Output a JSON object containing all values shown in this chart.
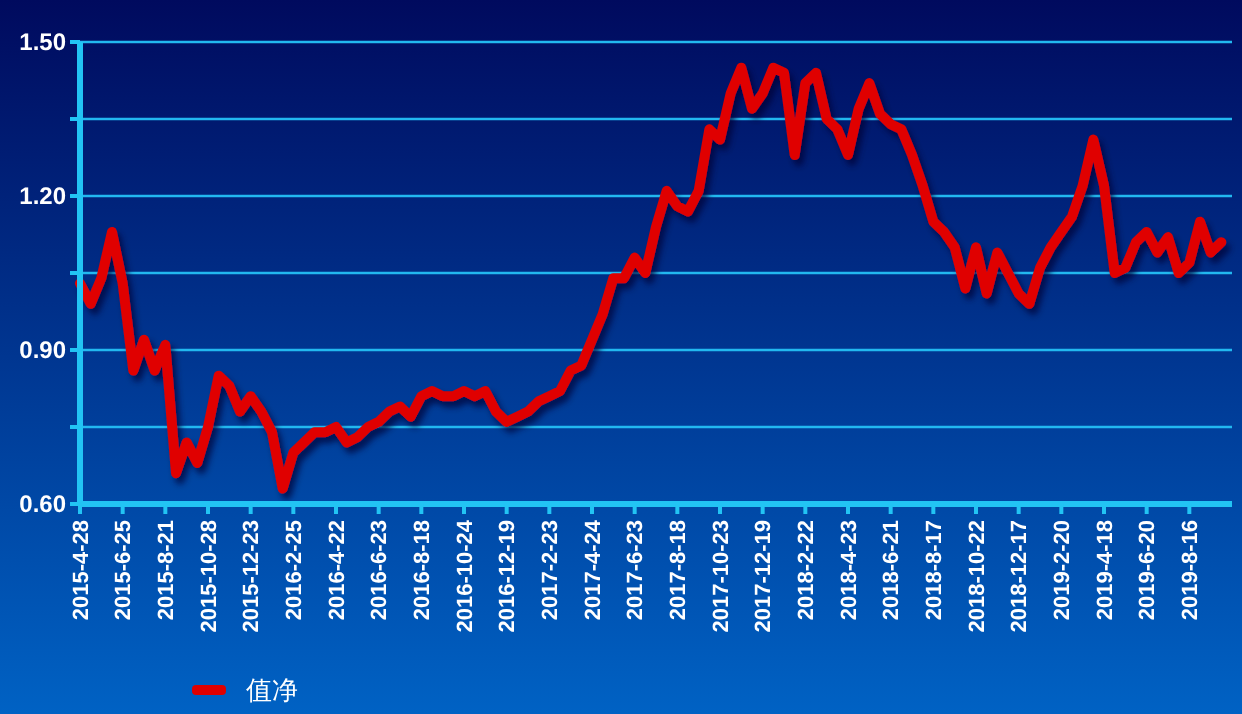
{
  "chart_data": {
    "type": "line",
    "categories": [
      "2015-4-28",
      null,
      null,
      null,
      "2015-6-25",
      null,
      null,
      null,
      "2015-8-21",
      null,
      null,
      null,
      "2015-10-28",
      null,
      null,
      null,
      "2015-12-23",
      null,
      null,
      null,
      "2016-2-25",
      null,
      null,
      null,
      "2016-4-22",
      null,
      null,
      null,
      "2016-6-23",
      null,
      null,
      null,
      "2016-8-18",
      null,
      null,
      null,
      "2016-10-24",
      null,
      null,
      null,
      "2016-12-19",
      null,
      null,
      null,
      "2017-2-23",
      null,
      null,
      null,
      "2017-4-24",
      null,
      null,
      null,
      "2017-6-23",
      null,
      null,
      null,
      "2017-8-18",
      null,
      null,
      null,
      "2017-10-23",
      null,
      null,
      null,
      "2017-12-19",
      null,
      null,
      null,
      "2018-2-22",
      null,
      null,
      null,
      "2018-4-23",
      null,
      null,
      null,
      "2018-6-21",
      null,
      null,
      null,
      "2018-8-17",
      null,
      null,
      null,
      "2018-10-22",
      null,
      null,
      null,
      "2018-12-17",
      null,
      null,
      null,
      "2019-2-20",
      null,
      null,
      null,
      "2019-4-18",
      null,
      null,
      null,
      "2019-6-20",
      null,
      null,
      null,
      "2019-8-16",
      null,
      null,
      null,
      null
    ],
    "series": [
      {
        "name": "值净",
        "color": "#e00000",
        "values": [
          1.03,
          0.99,
          1.04,
          1.13,
          1.03,
          0.86,
          0.92,
          0.86,
          0.91,
          0.66,
          0.72,
          0.68,
          0.75,
          0.85,
          0.83,
          0.78,
          0.81,
          0.78,
          0.74,
          0.63,
          0.7,
          0.72,
          0.74,
          0.74,
          0.75,
          0.72,
          0.73,
          0.75,
          0.76,
          0.78,
          0.79,
          0.77,
          0.81,
          0.82,
          0.81,
          0.81,
          0.82,
          0.81,
          0.82,
          0.78,
          0.76,
          0.77,
          0.78,
          0.8,
          0.81,
          0.82,
          0.86,
          0.87,
          0.92,
          0.97,
          1.04,
          1.04,
          1.08,
          1.05,
          1.14,
          1.21,
          1.18,
          1.17,
          1.21,
          1.33,
          1.31,
          1.4,
          1.45,
          1.37,
          1.4,
          1.45,
          1.44,
          1.28,
          1.42,
          1.44,
          1.35,
          1.33,
          1.28,
          1.37,
          1.42,
          1.36,
          1.34,
          1.33,
          1.28,
          1.22,
          1.15,
          1.13,
          1.1,
          1.02,
          1.1,
          1.01,
          1.09,
          1.05,
          1.01,
          0.99,
          1.06,
          1.1,
          1.13,
          1.16,
          1.22,
          1.31,
          1.22,
          1.05,
          1.06,
          1.11,
          1.13,
          1.09,
          1.12,
          1.05,
          1.07,
          1.15,
          1.09,
          1.11,
          null
        ]
      }
    ],
    "ylim": [
      0.6,
      1.5
    ],
    "yticks": [
      {
        "value": 0.6,
        "label": "0.60"
      },
      {
        "value": 0.75,
        "label": null
      },
      {
        "value": 0.9,
        "label": "0.90"
      },
      {
        "value": 1.05,
        "label": null
      },
      {
        "value": 1.2,
        "label": "1.20"
      },
      {
        "value": 1.35,
        "label": null
      },
      {
        "value": 1.5,
        "label": "1.50"
      }
    ],
    "grid": true,
    "legend": "bottom",
    "marker": "none",
    "line_style": "solid"
  }
}
